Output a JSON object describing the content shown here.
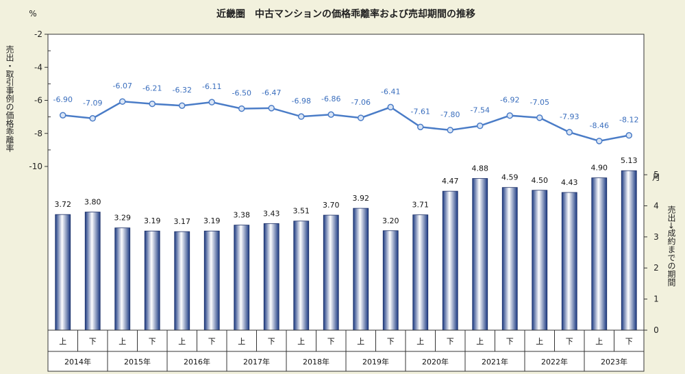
{
  "title": "近畿圏　中古マンションの価格乖離率および売却期間の推移",
  "left_axis": {
    "unit": "%",
    "label": "売出・取引事例の価格乖離率",
    "ticks": [
      "-2",
      "-4",
      "-6",
      "-8",
      "-10"
    ],
    "range": [
      -10,
      -2
    ]
  },
  "right_axis": {
    "unit": "月",
    "label": "売出→成約までの期間",
    "ticks": [
      "0",
      "1",
      "2",
      "3",
      "4",
      "5"
    ],
    "range": [
      0,
      5.2
    ]
  },
  "chart_data": [
    {
      "type": "line",
      "name": "価格乖離率",
      "x": [
        "2014上",
        "2014下",
        "2015上",
        "2015下",
        "2016上",
        "2016下",
        "2017上",
        "2017下",
        "2018上",
        "2018下",
        "2019上",
        "2019下",
        "2020上",
        "2020下",
        "2021上",
        "2021下",
        "2022上",
        "2022下",
        "2023上",
        "2023下"
      ],
      "values": [
        -6.9,
        -7.09,
        -6.07,
        -6.21,
        -6.32,
        -6.11,
        -6.5,
        -6.47,
        -6.98,
        -6.86,
        -7.06,
        -6.41,
        -7.61,
        -7.8,
        -7.54,
        -6.92,
        -7.05,
        -7.93,
        -8.46,
        -8.12
      ],
      "labels": [
        "-6.90",
        "-7.09",
        "-6.07",
        "-6.21",
        "-6.32",
        "-6.11",
        "-6.50",
        "-6.47",
        "-6.98",
        "-6.86",
        "-7.06",
        "-6.41",
        "-7.61",
        "-7.80",
        "-7.54",
        "-6.92",
        "-7.05",
        "-7.93",
        "-8.46",
        "-8.12"
      ],
      "color": "#4a7cc7"
    },
    {
      "type": "bar",
      "name": "売却期間",
      "x": [
        "2014上",
        "2014下",
        "2015上",
        "2015下",
        "2016上",
        "2016下",
        "2017上",
        "2017下",
        "2018上",
        "2018下",
        "2019上",
        "2019下",
        "2020上",
        "2020下",
        "2021上",
        "2021下",
        "2022上",
        "2022下",
        "2023上",
        "2023下"
      ],
      "values": [
        3.72,
        3.8,
        3.29,
        3.19,
        3.17,
        3.19,
        3.38,
        3.43,
        3.51,
        3.7,
        3.92,
        3.2,
        3.71,
        4.47,
        4.88,
        4.59,
        4.5,
        4.43,
        4.9,
        5.13
      ],
      "labels": [
        "3.72",
        "3.80",
        "3.29",
        "3.19",
        "3.17",
        "3.19",
        "3.38",
        "3.43",
        "3.51",
        "3.70",
        "3.92",
        "3.20",
        "3.71",
        "4.47",
        "4.88",
        "4.59",
        "4.50",
        "4.43",
        "4.90",
        "5.13"
      ],
      "color": "#1f3f86"
    }
  ],
  "x_halves": [
    "上",
    "下",
    "上",
    "下",
    "上",
    "下",
    "上",
    "下",
    "上",
    "下",
    "上",
    "下",
    "上",
    "下",
    "上",
    "下",
    "上",
    "下",
    "上",
    "下"
  ],
  "x_years": [
    "2014年",
    "2015年",
    "2016年",
    "2017年",
    "2018年",
    "2019年",
    "2020年",
    "2021年",
    "2022年",
    "2023年"
  ]
}
